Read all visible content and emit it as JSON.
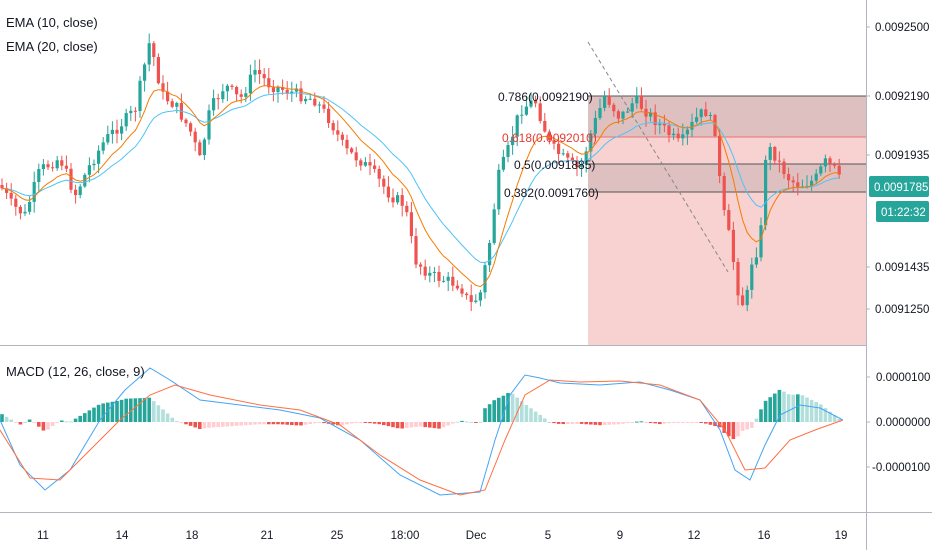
{
  "indicators": {
    "ema_fast": "EMA (10, close)",
    "ema_slow": "EMA (20, close)",
    "macd": "MACD (12, 26, close, 9)"
  },
  "price_axis": {
    "ticks": [
      "0.0092500",
      "0.0092190",
      "0.0091935",
      "0.0091435",
      "0.0091250"
    ],
    "last_price": "0.0091785",
    "countdown": "01:22:32"
  },
  "macd_axis": {
    "ticks": [
      "0.0000100",
      "0.0000000",
      "-0.0000100"
    ]
  },
  "time_axis": {
    "ticks": [
      "11",
      "14",
      "18",
      "21",
      "25",
      "18:00",
      "Dec",
      "5",
      "9",
      "12",
      "16",
      "19"
    ]
  },
  "fib_levels": [
    {
      "label": "0.786(0.0092190)"
    },
    {
      "label": "0.618(0.0092010)"
    },
    {
      "label": "0.5(0.0091885)"
    },
    {
      "label": "0.382(0.0091760)"
    }
  ],
  "colors": {
    "up": "#26a69a",
    "down": "#ef5350",
    "ema_fast": "#f57c00",
    "ema_slow": "#4fc3f7",
    "macd_line": "#42a5f5",
    "signal_line": "#ff7043",
    "hist_up_strong": "#26a69a",
    "hist_up_weak": "#b2dfdb",
    "hist_down_strong": "#ef5350",
    "hist_down_weak": "#ffcdd2",
    "fib_zone": "#ef9a9a",
    "last_price_bg": "#26a69a"
  },
  "chart_data": {
    "type": "candlestick",
    "y_axis_ticks": [
      0.00925,
      0.009219,
      0.0091935,
      0.0091435,
      0.009125
    ],
    "fib_values": [
      0.009219,
      0.009201,
      0.0091885,
      0.009176
    ],
    "last_price": 0.0091785,
    "macd_ticks": [
      1e-05,
      0,
      -1e-05
    ]
  }
}
